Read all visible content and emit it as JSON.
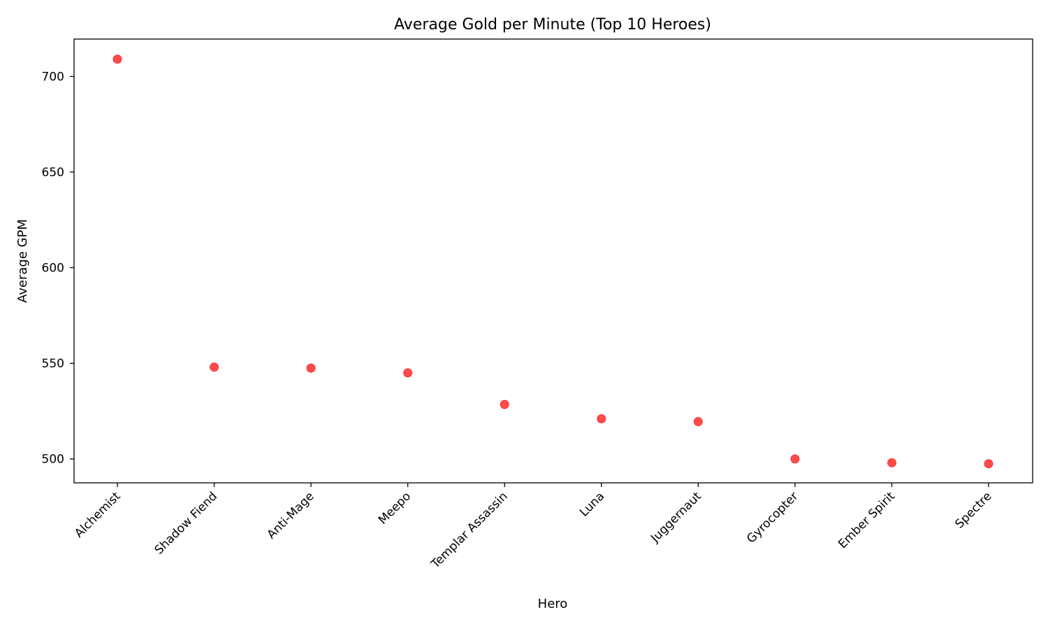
{
  "chart_data": {
    "type": "scatter",
    "title": "Average Gold per Minute (Top 10 Heroes)",
    "xlabel": "Hero",
    "ylabel": "Average GPM",
    "categories": [
      "Alchemist",
      "Shadow Fiend",
      "Anti-Mage",
      "Meepo",
      "Templar Assassin",
      "Luna",
      "Juggernaut",
      "Gyrocopter",
      "Ember Spirit",
      "Spectre"
    ],
    "values": [
      709,
      548,
      547.5,
      545,
      528.5,
      521,
      519.5,
      500,
      498,
      497.5
    ],
    "yticks": [
      500,
      550,
      600,
      650,
      700
    ],
    "ylim": [
      487.5,
      719.5
    ],
    "grid": false,
    "legend": "none",
    "marker_color": "#ff0000",
    "marker_opacity": 0.7
  }
}
